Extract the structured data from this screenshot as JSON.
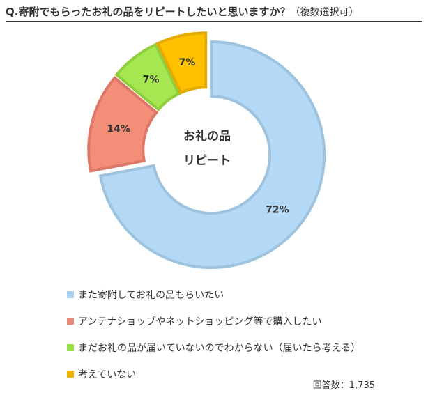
{
  "question": {
    "main": "Q.寄附でもらったお礼の品をリピートしたいと思いますか？",
    "sub": "（複数選択可）"
  },
  "center_label": [
    "お礼の品",
    "リピート"
  ],
  "respondents": "回答数：1,735",
  "chart_data": {
    "type": "pie",
    "donut": true,
    "categories": [
      "また寄附してお礼の品もらいたい",
      "アンテナショップやネットショッピング等で購入したい",
      "まだお礼の品が届いていないのでわからない（届いたら考える）",
      "考えていない"
    ],
    "values": [
      72,
      14,
      7,
      7
    ],
    "value_labels": [
      "72%",
      "14%",
      "7%",
      "7%"
    ],
    "unit": "%",
    "fill_colors": [
      "#b3d9f7",
      "#f38e79",
      "#a6e651",
      "#ffc000"
    ],
    "stroke_colors": [
      "#9dc3de",
      "#dd7868",
      "#8fcf3d",
      "#e3ab00"
    ],
    "legend_colors": [
      "#a9d0ec",
      "#e88a78",
      "#9be04b",
      "#f0b400"
    ],
    "legend_position": "bottom"
  }
}
